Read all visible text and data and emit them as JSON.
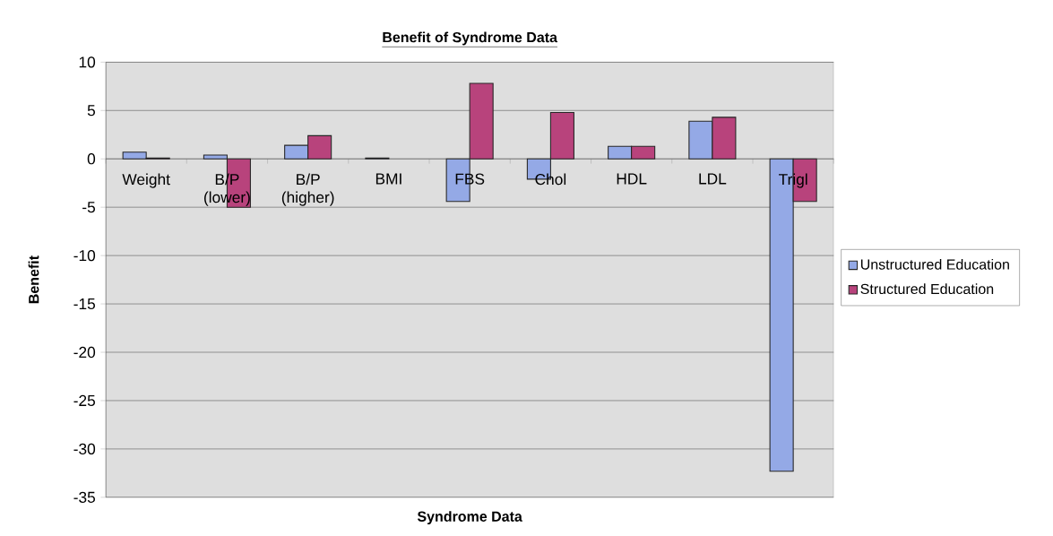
{
  "chart_data": {
    "type": "bar",
    "title": "Benefit of Syndrome Data",
    "xlabel": "Syndrome Data",
    "ylabel": "Benefit",
    "categories": [
      "Weight",
      "B/P (lower)",
      "B/P (higher)",
      "BMI",
      "FBS",
      "Chol",
      "HDL",
      "LDL",
      "Trigl"
    ],
    "series": [
      {
        "name": "Unstructured Education",
        "color": "#94a9e6",
        "values": [
          0.7,
          0.4,
          1.4,
          0.1,
          -4.4,
          -2.1,
          1.3,
          3.9,
          -32.3
        ]
      },
      {
        "name": "Structured Education",
        "color": "#b8437c",
        "values": [
          0.1,
          -5.0,
          2.4,
          null,
          7.8,
          4.8,
          1.3,
          4.3,
          -4.4
        ]
      }
    ],
    "ylim": [
      -35,
      10
    ],
    "yticks": [
      -35,
      -30,
      -25,
      -20,
      -15,
      -10,
      -5,
      0,
      5,
      10
    ],
    "grid": "y",
    "legend": "right"
  }
}
